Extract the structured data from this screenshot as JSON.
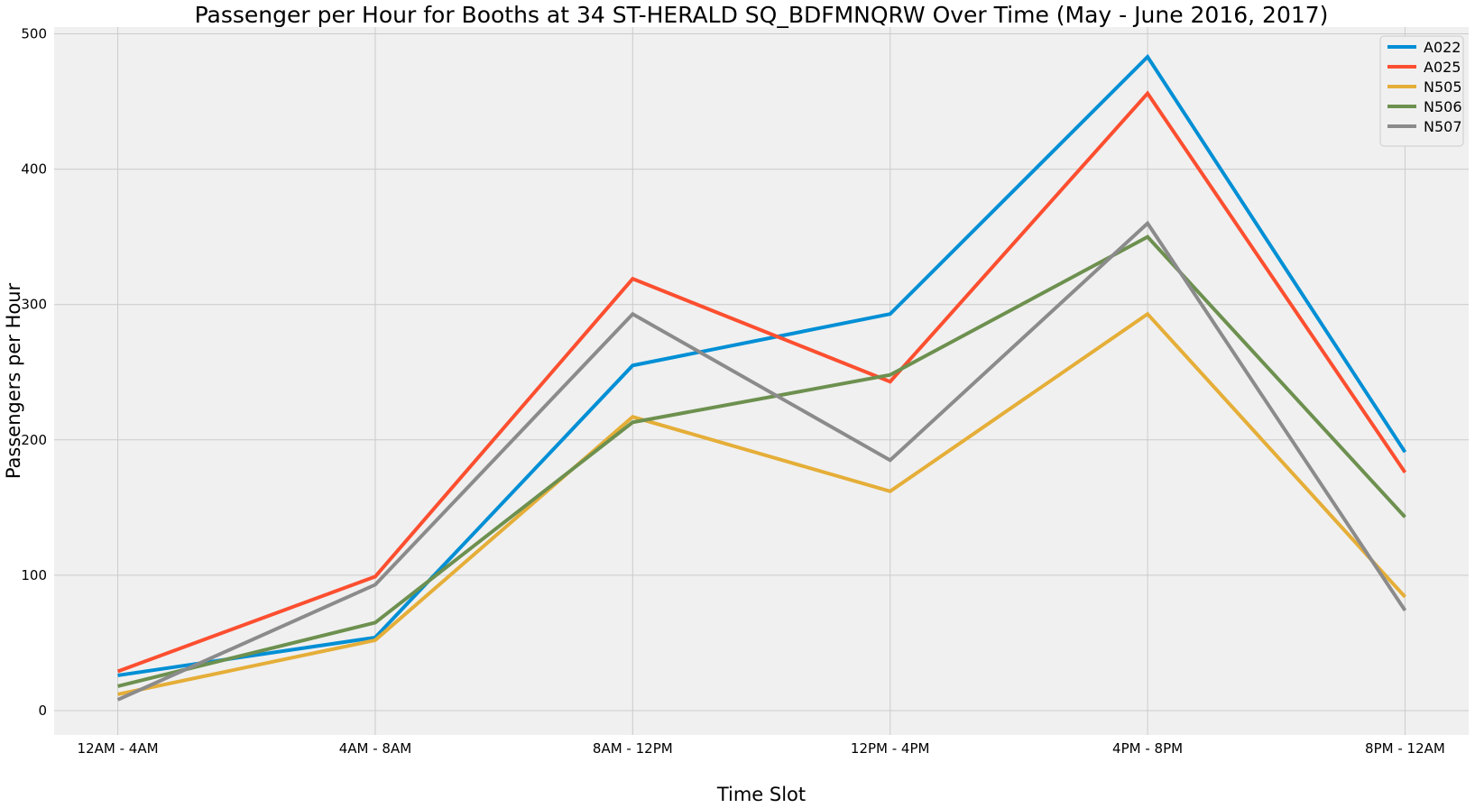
{
  "chart_data": {
    "type": "line",
    "title": "Passenger per Hour for Booths at 34 ST-HERALD SQ_BDFMNQRW Over Time (May - June 2016, 2017)",
    "xlabel": "Time Slot",
    "ylabel": "Passengers per Hour",
    "categories": [
      "12AM - 4AM",
      "4AM - 8AM",
      "8AM - 12PM",
      "12PM - 4PM",
      "4PM - 8PM",
      "8PM - 12AM"
    ],
    "ylim": [
      -18,
      505
    ],
    "yticks": [
      0,
      100,
      200,
      300,
      400,
      500
    ],
    "grid": true,
    "legend_position": "top-right",
    "background": "#f0f0f0",
    "grid_color": "#cbcbcb",
    "series": [
      {
        "name": "A022",
        "color": "#008fd5",
        "values": [
          26,
          54,
          255,
          293,
          483,
          191
        ]
      },
      {
        "name": "A025",
        "color": "#fc4f30",
        "values": [
          29,
          99,
          319,
          243,
          456,
          176
        ]
      },
      {
        "name": "N505",
        "color": "#e5ae38",
        "values": [
          12,
          52,
          217,
          162,
          293,
          84
        ]
      },
      {
        "name": "N506",
        "color": "#6d904f",
        "values": [
          18,
          65,
          213,
          248,
          350,
          143
        ]
      },
      {
        "name": "N507",
        "color": "#8b8b8b",
        "values": [
          8,
          93,
          293,
          185,
          360,
          74
        ]
      }
    ]
  }
}
